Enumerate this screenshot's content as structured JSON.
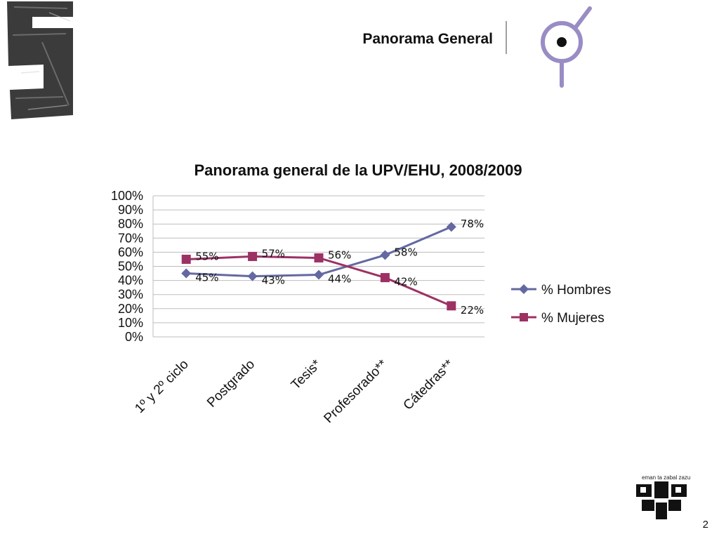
{
  "header": {
    "title": "Panorama General"
  },
  "footer": {
    "motto": "eman ta zabal zazu",
    "page_number": "2"
  },
  "colors": {
    "hombres": "#6468a2",
    "mujeres": "#9c3164",
    "logo_purple": "#9a8cc4",
    "gridline": "#bdbdbd"
  },
  "chart_data": {
    "type": "line",
    "title": "Panorama general de la UPV/EHU, 2008/2009",
    "categories": [
      "1º y 2º ciclo",
      "Postgrado",
      "Tesis*",
      "Profesorado**",
      "Cátedras**"
    ],
    "y_ticks": [
      "0%",
      "10%",
      "20%",
      "30%",
      "40%",
      "50%",
      "60%",
      "70%",
      "80%",
      "90%",
      "100%"
    ],
    "ylim": [
      0,
      100
    ],
    "grid": true,
    "legend_position": "right",
    "series": [
      {
        "name": "% Hombres",
        "marker": "diamond",
        "values": [
          45,
          43,
          44,
          58,
          78
        ],
        "labels": [
          "45%",
          "43%",
          "44%",
          "58%",
          "78%"
        ]
      },
      {
        "name": "% Mujeres",
        "marker": "square",
        "values": [
          55,
          57,
          56,
          42,
          22
        ],
        "labels": [
          "55%",
          "57%",
          "56%",
          "42%",
          "22%"
        ]
      }
    ]
  }
}
